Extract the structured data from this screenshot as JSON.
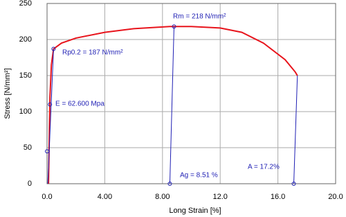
{
  "chart_data": {
    "type": "line",
    "x_label": "Long Strain [%]",
    "y_label": "Stress [N/mm²]",
    "xlim": [
      0,
      20
    ],
    "ylim": [
      0,
      250
    ],
    "xticks": [
      {
        "value": 0,
        "label": "0.0"
      },
      {
        "value": 4,
        "label": "4.00"
      },
      {
        "value": 8,
        "label": "8.00"
      },
      {
        "value": 12,
        "label": "12.0"
      },
      {
        "value": 16,
        "label": "16.0"
      },
      {
        "value": 20,
        "label": "20.0"
      }
    ],
    "yticks": [
      0,
      50,
      100,
      150,
      200,
      250
    ],
    "grid": true,
    "color": "#e8141c",
    "x": [
      0.1,
      0.15,
      0.2,
      0.3,
      0.45,
      1,
      2,
      4,
      6,
      8.5,
      10,
      12,
      13.5,
      15,
      16.5,
      17.2,
      17.35
    ],
    "values": [
      0,
      60,
      120,
      165,
      187,
      195,
      202,
      210,
      215,
      218,
      218,
      216,
      210,
      195,
      172,
      155,
      150
    ],
    "points": {
      "color": "#1f1fb4",
      "x": [
        0,
        0.2,
        0.45,
        8.8,
        8.51,
        17.1
      ],
      "values": [
        45,
        110,
        187,
        218,
        0,
        0
      ]
    },
    "segments": [
      {
        "x": [
          0.05,
          0.45
        ],
        "values": [
          0,
          187
        ]
      },
      {
        "x": [
          8.51,
          8.8
        ],
        "values": [
          0,
          218
        ]
      },
      {
        "x": [
          17.1,
          17.35
        ],
        "values": [
          0,
          150
        ]
      }
    ],
    "annotations": [
      "Rm = 218 N/mm²",
      "Rp0.2 = 187 N/mm²",
      "E = 62.600 Mpa",
      "Ag = 8.51 %",
      "A = 17.2%"
    ]
  }
}
